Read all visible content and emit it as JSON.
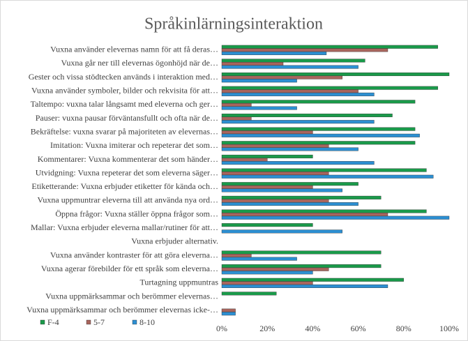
{
  "chart_data": {
    "type": "hbar",
    "title": "Språkinlärningsinteraktion",
    "categories": [
      "Vuxna använder elevernas namn för att få deras…",
      "Vuxna går ner till elevernas ögonhöjd när de…",
      "Gester och vissa stödtecken används i interaktion med…",
      "Vuxna använder symboler, bilder och rekvisita för att…",
      "Taltempo: vuxna talar långsamt med eleverna och ger…",
      "Pauser: vuxna pausar förväntansfullt och ofta när de…",
      "Bekräftelse: vuxna svarar på majoriteten av elevernas…",
      "Imitation: Vuxna imiterar och repeterar det som…",
      "Kommentarer: Vuxna kommenterar det som händer…",
      "Utvidgning: Vuxna repeterar det som eleverna säger…",
      "Etiketterande: Vuxna erbjuder etiketter för kända och…",
      "Vuxna uppmuntrar eleverna till att använda nya ord…",
      "Öppna frågor: Vuxna ställer öppna frågor som…",
      "Mallar: Vuxna erbjuder eleverna mallar/rutiner för att…",
      "Vuxna erbjuder alternativ.",
      "Vuxna använder kontraster för att göra eleverna…",
      "Vuxna agerar förebilder för ett språk som eleverna…",
      "Turtagning uppmuntras",
      "Vuxna uppmärksammar och berömmer elevernas…",
      "Vuxna uppmärksammar och berömmer elevernas icke-…"
    ],
    "series": [
      {
        "name": "F-4",
        "color": "#1a9a4a",
        "values": [
          95,
          63,
          100,
          95,
          85,
          75,
          85,
          85,
          40,
          90,
          60,
          70,
          90,
          40,
          0,
          70,
          70,
          80,
          24,
          0
        ]
      },
      {
        "name": "5-7",
        "color": "#a8655d",
        "values": [
          73,
          27,
          53,
          60,
          13,
          13,
          40,
          47,
          20,
          47,
          40,
          47,
          73,
          0,
          0,
          13,
          47,
          40,
          0,
          6
        ]
      },
      {
        "name": "8-10",
        "color": "#2c8fd2",
        "values": [
          46,
          60,
          33,
          67,
          33,
          67,
          87,
          60,
          67,
          93,
          53,
          60,
          100,
          53,
          0,
          33,
          40,
          73,
          0,
          6
        ]
      }
    ],
    "xlim": [
      0,
      100
    ],
    "xticks": [
      {
        "value": 0,
        "label": "0%"
      },
      {
        "value": 20,
        "label": "20%"
      },
      {
        "value": 40,
        "label": "40%"
      },
      {
        "value": 60,
        "label": "60%"
      },
      {
        "value": 80,
        "label": "80%"
      },
      {
        "value": 100,
        "label": "100%"
      }
    ]
  }
}
